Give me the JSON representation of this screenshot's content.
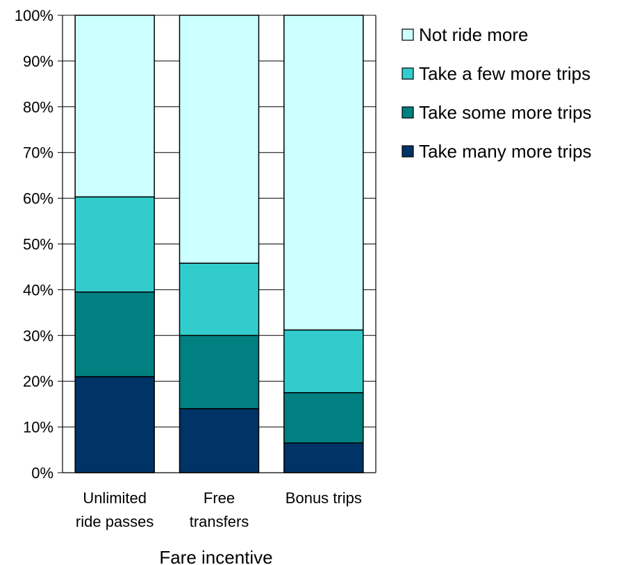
{
  "chart_data": {
    "type": "bar",
    "stacked": true,
    "normalized": true,
    "categories": [
      [
        "Unlimited",
        "ride passes"
      ],
      [
        "Free",
        "transfers"
      ],
      [
        "Bonus trips"
      ]
    ],
    "series": [
      {
        "name": "Take many more trips",
        "color": "#003366",
        "values": [
          21,
          14,
          6.5
        ]
      },
      {
        "name": "Take some more trips",
        "color": "#008080",
        "values": [
          18.5,
          16,
          11
        ]
      },
      {
        "name": "Take a few more trips",
        "color": "#33CCCC",
        "values": [
          20.8,
          15.8,
          13.7
        ]
      },
      {
        "name": "Not ride more",
        "color": "#CCFFFF",
        "values": [
          39.7,
          54.2,
          68.8
        ]
      }
    ],
    "legend_order": [
      "Not ride more",
      "Take a few more trips",
      "Take some more trips",
      "Take many more trips"
    ],
    "xlabel": "Fare incentive",
    "ylabel": "",
    "ylim": [
      0,
      100
    ],
    "yticks": [
      "0%",
      "10%",
      "20%",
      "30%",
      "40%",
      "50%",
      "60%",
      "70%",
      "80%",
      "90%",
      "100%"
    ],
    "grid": true,
    "legend_position": "right"
  }
}
